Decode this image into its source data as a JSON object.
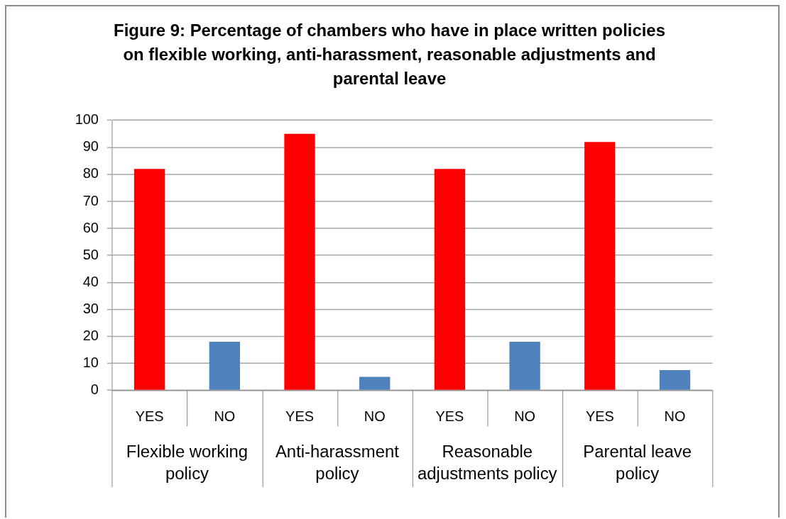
{
  "chart_data": {
    "type": "bar",
    "title": "Figure 9: Percentage of chambers who have in place written policies on flexible working, anti-harassment, reasonable adjustments and parental leave",
    "categories": [
      "YES",
      "NO",
      "YES",
      "NO",
      "YES",
      "NO",
      "YES",
      "NO"
    ],
    "values": [
      82,
      18,
      95,
      5,
      82,
      18,
      92,
      7.5
    ],
    "colors": [
      "#ff0000",
      "#4f81bd",
      "#ff0000",
      "#4f81bd",
      "#ff0000",
      "#4f81bd",
      "#ff0000",
      "#4f81bd"
    ],
    "ylim": [
      0,
      100
    ],
    "yticks": [
      0,
      10,
      20,
      30,
      40,
      50,
      60,
      70,
      80,
      90,
      100
    ],
    "grid": "y",
    "annotations": [
      "Flexible working policy",
      "Anti-harassment policy",
      "Reasonable adjustments policy",
      "Parental leave policy"
    ]
  }
}
